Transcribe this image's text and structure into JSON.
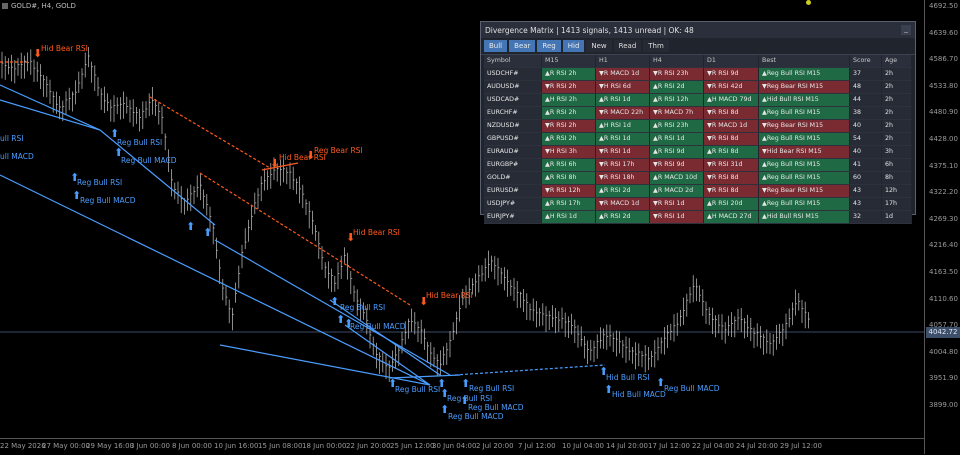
{
  "chart": {
    "symbol_header": "GOLD#, H4, GOLD",
    "price_labels": [
      "4692.50",
      "4639.60",
      "4586.70",
      "4533.80",
      "4480.90",
      "4428.00",
      "4375.10",
      "4322.20",
      "4269.30",
      "4216.40",
      "4163.50",
      "4110.60",
      "4057.70",
      "4004.80",
      "3951.90",
      "3899.00"
    ],
    "current_price": "4042.72",
    "time_labels": [
      "22 May 2026",
      "27 May 00:00",
      "29 May 16:00",
      "3 Jun 00:00",
      "8 Jun 00:00",
      "10 Jun 16:00",
      "15 Jun 08:00",
      "18 Jun 00:00",
      "22 Jun 20:00",
      "25 Jun 12:00",
      "30 Jun 04:00",
      "2 Jul 20:00",
      "7 Jul 12:00",
      "10 Jul 04:00",
      "14 Jul 20:00",
      "17 Jul 12:00",
      "22 Jul 04:00",
      "24 Jul 20:00",
      "29 Jul 12:00"
    ],
    "annotations": {
      "hid_bear_1": "Hid Bear RSI",
      "bull_rsi_edge": "ull RSI",
      "bull_macd_edge": "ull MACD",
      "reg_bull_rsi_1": "Reg Bull RSI",
      "reg_bull_macd_1": "Reg Bull MACD",
      "reg_bull_rsi_2": "Reg Bull RSI",
      "reg_bull_macd_2": "Reg Bull MACD",
      "hid_bear_2": "Hid Bear RSI",
      "reg_bear_1": "Reg Bear RSI",
      "hid_bear_3": "Hid Bear RSI",
      "hid_bear_4": "Hid Bear RSI",
      "reg_bull_rsi_3": "Reg Bull RSI",
      "reg_bull_macd_3": "Reg Bull MACD",
      "reg_bull_rsi_4": "Reg Bull RSI",
      "reg_bull_rsi_5": "Reg Bull RSI",
      "reg_bull_rsi_6": "Reg Bull RSI",
      "reg_bull_macd_4": "Reg Bull MACD",
      "reg_bull_macd_5": "Reg Bull MACD",
      "hid_bull_rsi": "Hid Bull RSI",
      "hid_bull_macd": "Hid Bull MACD",
      "reg_bull_macd_6": "Reg Bull MACD"
    },
    "colors": {
      "bull": "#4a9dff",
      "bear": "#ff5a1e",
      "candle": "#c8c8c8"
    }
  },
  "panel": {
    "title": "Divergence Matrix  |  1413 signals, 1413 unread | OK: 48",
    "close_label": "_",
    "tabs": [
      "Bull",
      "Bear",
      "Reg",
      "Hid",
      "New",
      "Read",
      "Thm"
    ],
    "active_tabs": [
      true,
      true,
      true,
      true,
      false,
      false,
      false
    ],
    "columns": [
      "Symbol",
      "M15",
      "H1",
      "H4",
      "D1",
      "Best",
      "Score",
      "Age"
    ],
    "rows": [
      {
        "symbol": "USDCHF#",
        "m15": "▲R RSI 2h",
        "h1": "▼R MACD 1d",
        "h4": "▼R RSI 23h",
        "d1": "▼R RSI 9d",
        "best": "▲Reg Bull RSI M15",
        "score": "37",
        "age": "2h",
        "cls": [
          "bull",
          "bear",
          "bear",
          "bear",
          "bull"
        ]
      },
      {
        "symbol": "AUDUSD#",
        "m15": "▼R RSI 2h",
        "h1": "▼H RSI 6d",
        "h4": "▲R RSI 2d",
        "d1": "▼R RSI 42d",
        "best": "▼Reg Bear RSI M15",
        "score": "48",
        "age": "2h",
        "cls": [
          "bear",
          "bear",
          "bull",
          "bear",
          "bear"
        ]
      },
      {
        "symbol": "USDCAD#",
        "m15": "▲H RSI 2h",
        "h1": "▲R RSI 1d",
        "h4": "▲R RSI 12h",
        "d1": "▲H MACD 79d",
        "best": "▲Hid Bull RSI M15",
        "score": "44",
        "age": "2h",
        "cls": [
          "bull",
          "bull",
          "bull",
          "bull",
          "bull"
        ]
      },
      {
        "symbol": "EURCHF#",
        "m15": "▲R RSI 2h",
        "h1": "▼R MACD 22h",
        "h4": "▼R MACD 7h",
        "d1": "▼R RSI 8d",
        "best": "▲Reg Bull RSI M15",
        "score": "38",
        "age": "2h",
        "cls": [
          "bull",
          "bear",
          "bear",
          "bear",
          "bull"
        ]
      },
      {
        "symbol": "NZDUSD#",
        "m15": "▼R RSI 2h",
        "h1": "▲H RSI 1d",
        "h4": "▲R RSI 23h",
        "d1": "▼R MACD 1d",
        "best": "▼Reg Bear RSI M15",
        "score": "40",
        "age": "2h",
        "cls": [
          "bear",
          "bull",
          "bull",
          "bear",
          "bear"
        ]
      },
      {
        "symbol": "GBPUSD#",
        "m15": "▲R RSI 2h",
        "h1": "▲R RSI 1d",
        "h4": "▲R RSI 1d",
        "d1": "▼R RSI 8d",
        "best": "▲Reg Bull RSI M15",
        "score": "54",
        "age": "2h",
        "cls": [
          "bull",
          "bull",
          "bull",
          "bear",
          "bull"
        ]
      },
      {
        "symbol": "EURAUD#",
        "m15": "▼H RSI 3h",
        "h1": "▼R RSI 1d",
        "h4": "▲R RSI 9d",
        "d1": "▲R RSI 8d",
        "best": "▼Hid Bear RSI M15",
        "score": "40",
        "age": "3h",
        "cls": [
          "bear",
          "bear",
          "bull",
          "bull",
          "bear"
        ]
      },
      {
        "symbol": "EURGBP#",
        "m15": "▲R RSI 6h",
        "h1": "▼R RSI 17h",
        "h4": "▼R RSI 9d",
        "d1": "▼R RSI 31d",
        "best": "▲Reg Bull RSI M15",
        "score": "41",
        "age": "6h",
        "cls": [
          "bull",
          "bear",
          "bear",
          "bear",
          "bull"
        ]
      },
      {
        "symbol": "GOLD#",
        "m15": "▲R RSI 8h",
        "h1": "▼R RSI 18h",
        "h4": "▲R MACD 10d",
        "d1": "▼R RSI 8d",
        "best": "▲Reg Bull RSI M15",
        "score": "60",
        "age": "8h",
        "cls": [
          "bull",
          "bear",
          "bull",
          "bear",
          "bull"
        ]
      },
      {
        "symbol": "EURUSD#",
        "m15": "▼R RSI 12h",
        "h1": "▲R RSI 2d",
        "h4": "▲R MACD 2d",
        "d1": "▼R RSI 8d",
        "best": "▼Reg Bear RSI M15",
        "score": "43",
        "age": "12h",
        "cls": [
          "bear",
          "bull",
          "bull",
          "bear",
          "bear"
        ]
      },
      {
        "symbol": "USDJPY#",
        "m15": "▲R RSI 17h",
        "h1": "▼R MACD 1d",
        "h4": "▼R RSI 1d",
        "d1": "▲R RSI 20d",
        "best": "▲Reg Bull RSI M15",
        "score": "43",
        "age": "17h",
        "cls": [
          "bull",
          "bear",
          "bear",
          "bull",
          "bull"
        ]
      },
      {
        "symbol": "EURJPY#",
        "m15": "▲H RSI 1d",
        "h1": "▲R RSI 2d",
        "h4": "▼R RSI 1d",
        "d1": "▲H MACD 27d",
        "best": "▲Hid Bull RSI M15",
        "score": "32",
        "age": "1d",
        "cls": [
          "bull",
          "bull",
          "bear",
          "bull",
          "bull"
        ]
      }
    ]
  }
}
